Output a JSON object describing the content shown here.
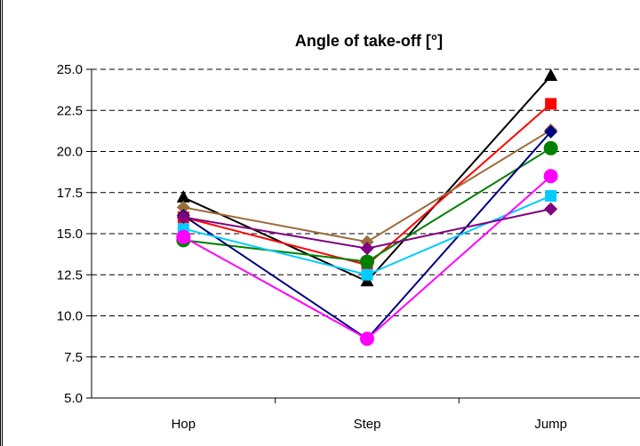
{
  "chart_data": {
    "type": "line",
    "title": "Angle of take-off [°]",
    "xlabel": "",
    "ylabel": "",
    "categories": [
      "Hop",
      "Step",
      "Jump"
    ],
    "ylim": [
      5.0,
      25.0
    ],
    "y_ticks": [
      "5.0",
      "7.5",
      "10.0",
      "12.5",
      "15.0",
      "17.5",
      "20.0",
      "22.5",
      "25.0"
    ],
    "grid": "horizontal dashed",
    "legend": "none",
    "series": [
      {
        "color": "#000000",
        "marker": "triangle",
        "values": [
          17.2,
          12.1,
          24.6
        ]
      },
      {
        "color": "#ff0000",
        "marker": "square",
        "values": [
          16.0,
          13.1,
          22.9
        ]
      },
      {
        "color": "#9c6b3c",
        "marker": "diamond",
        "values": [
          16.6,
          14.5,
          21.3
        ]
      },
      {
        "color": "#008000",
        "marker": "circle",
        "values": [
          14.6,
          13.3,
          20.2
        ]
      },
      {
        "color": "#000080",
        "marker": "diamond",
        "values": [
          16.1,
          8.6,
          21.2
        ]
      },
      {
        "color": "#00ccff",
        "marker": "square",
        "values": [
          15.3,
          12.5,
          17.3
        ]
      },
      {
        "color": "#ff00ff",
        "marker": "circle",
        "values": [
          14.8,
          8.6,
          18.5
        ]
      },
      {
        "color": "#800080",
        "marker": "diamond",
        "values": [
          16.0,
          14.1,
          16.5
        ]
      }
    ]
  }
}
